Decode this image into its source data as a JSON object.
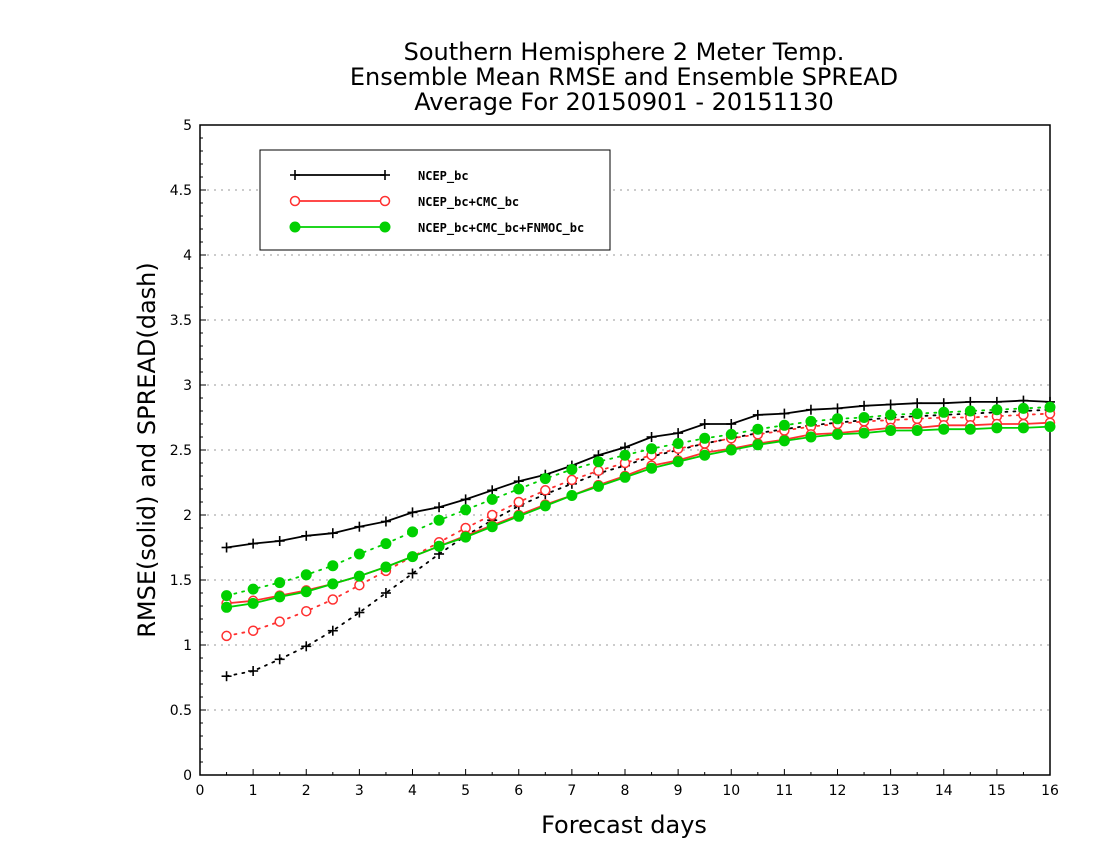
{
  "chart_data": {
    "type": "line",
    "title": [
      "Southern Hemisphere 2 Meter Temp.",
      "Ensemble Mean RMSE and Ensemble SPREAD",
      "Average For 20150901 - 20151130"
    ],
    "xlabel": "Forecast days",
    "ylabel": "RMSE(solid) and SPREAD(dash)",
    "xlim": [
      0,
      16
    ],
    "ylim": [
      0,
      5
    ],
    "xticks": [
      "0",
      "1",
      "2",
      "3",
      "4",
      "5",
      "6",
      "7",
      "8",
      "9",
      "10",
      "11",
      "12",
      "13",
      "14",
      "15",
      "16"
    ],
    "yticks": [
      "0",
      "0.5",
      "1",
      "1.5",
      "2",
      "2.5",
      "3",
      "3.5",
      "4",
      "4.5",
      "5"
    ],
    "grid": "horizontal dotted",
    "legend_position": "top-left",
    "x": [
      0.5,
      1,
      1.5,
      2,
      2.5,
      3,
      3.5,
      4,
      4.5,
      5,
      5.5,
      6,
      6.5,
      7,
      7.5,
      8,
      8.5,
      9,
      9.5,
      10,
      10.5,
      11,
      11.5,
      12,
      12.5,
      13,
      13.5,
      14,
      14.5,
      15,
      15.5,
      16
    ],
    "series": [
      {
        "name": "NCEP_bc",
        "color": "#000000",
        "marker": "plus",
        "rmse": [
          1.75,
          1.78,
          1.8,
          1.84,
          1.86,
          1.91,
          1.95,
          2.02,
          2.06,
          2.12,
          2.19,
          2.26,
          2.31,
          2.38,
          2.46,
          2.52,
          2.6,
          2.63,
          2.7,
          2.7,
          2.77,
          2.78,
          2.81,
          2.82,
          2.84,
          2.85,
          2.86,
          2.86,
          2.87,
          2.87,
          2.88,
          2.87
        ],
        "spread": [
          0.76,
          0.8,
          0.89,
          0.99,
          1.11,
          1.25,
          1.4,
          1.55,
          1.7,
          1.84,
          1.96,
          2.07,
          2.16,
          2.24,
          2.32,
          2.38,
          2.45,
          2.5,
          2.55,
          2.59,
          2.63,
          2.66,
          2.69,
          2.71,
          2.73,
          2.75,
          2.76,
          2.77,
          2.78,
          2.79,
          2.8,
          2.81
        ]
      },
      {
        "name": "NCEP_bc+CMC_bc",
        "color": "#ff3030",
        "marker": "open-circle",
        "rmse": [
          1.32,
          1.34,
          1.38,
          1.42,
          1.47,
          1.53,
          1.6,
          1.68,
          1.76,
          1.84,
          1.92,
          2.0,
          2.08,
          2.15,
          2.23,
          2.3,
          2.38,
          2.42,
          2.48,
          2.51,
          2.55,
          2.58,
          2.62,
          2.63,
          2.65,
          2.67,
          2.67,
          2.69,
          2.69,
          2.7,
          2.7,
          2.71
        ],
        "spread": [
          1.07,
          1.11,
          1.18,
          1.26,
          1.35,
          1.46,
          1.57,
          1.68,
          1.79,
          1.9,
          2.0,
          2.1,
          2.19,
          2.27,
          2.34,
          2.4,
          2.46,
          2.51,
          2.55,
          2.59,
          2.62,
          2.65,
          2.68,
          2.7,
          2.72,
          2.73,
          2.74,
          2.75,
          2.75,
          2.76,
          2.77,
          2.78
        ]
      },
      {
        "name": "NCEP_bc+CMC_bc+FNMOC_bc",
        "color": "#00d000",
        "marker": "filled-circle",
        "rmse": [
          1.29,
          1.32,
          1.37,
          1.41,
          1.47,
          1.53,
          1.6,
          1.68,
          1.76,
          1.83,
          1.91,
          1.99,
          2.07,
          2.15,
          2.22,
          2.29,
          2.36,
          2.41,
          2.46,
          2.5,
          2.54,
          2.57,
          2.6,
          2.62,
          2.63,
          2.65,
          2.65,
          2.66,
          2.66,
          2.67,
          2.67,
          2.68
        ],
        "spread": [
          1.38,
          1.43,
          1.48,
          1.54,
          1.61,
          1.7,
          1.78,
          1.87,
          1.96,
          2.04,
          2.12,
          2.2,
          2.28,
          2.35,
          2.41,
          2.46,
          2.51,
          2.55,
          2.59,
          2.62,
          2.66,
          2.69,
          2.72,
          2.74,
          2.75,
          2.77,
          2.78,
          2.79,
          2.8,
          2.81,
          2.82,
          2.83
        ]
      }
    ]
  }
}
